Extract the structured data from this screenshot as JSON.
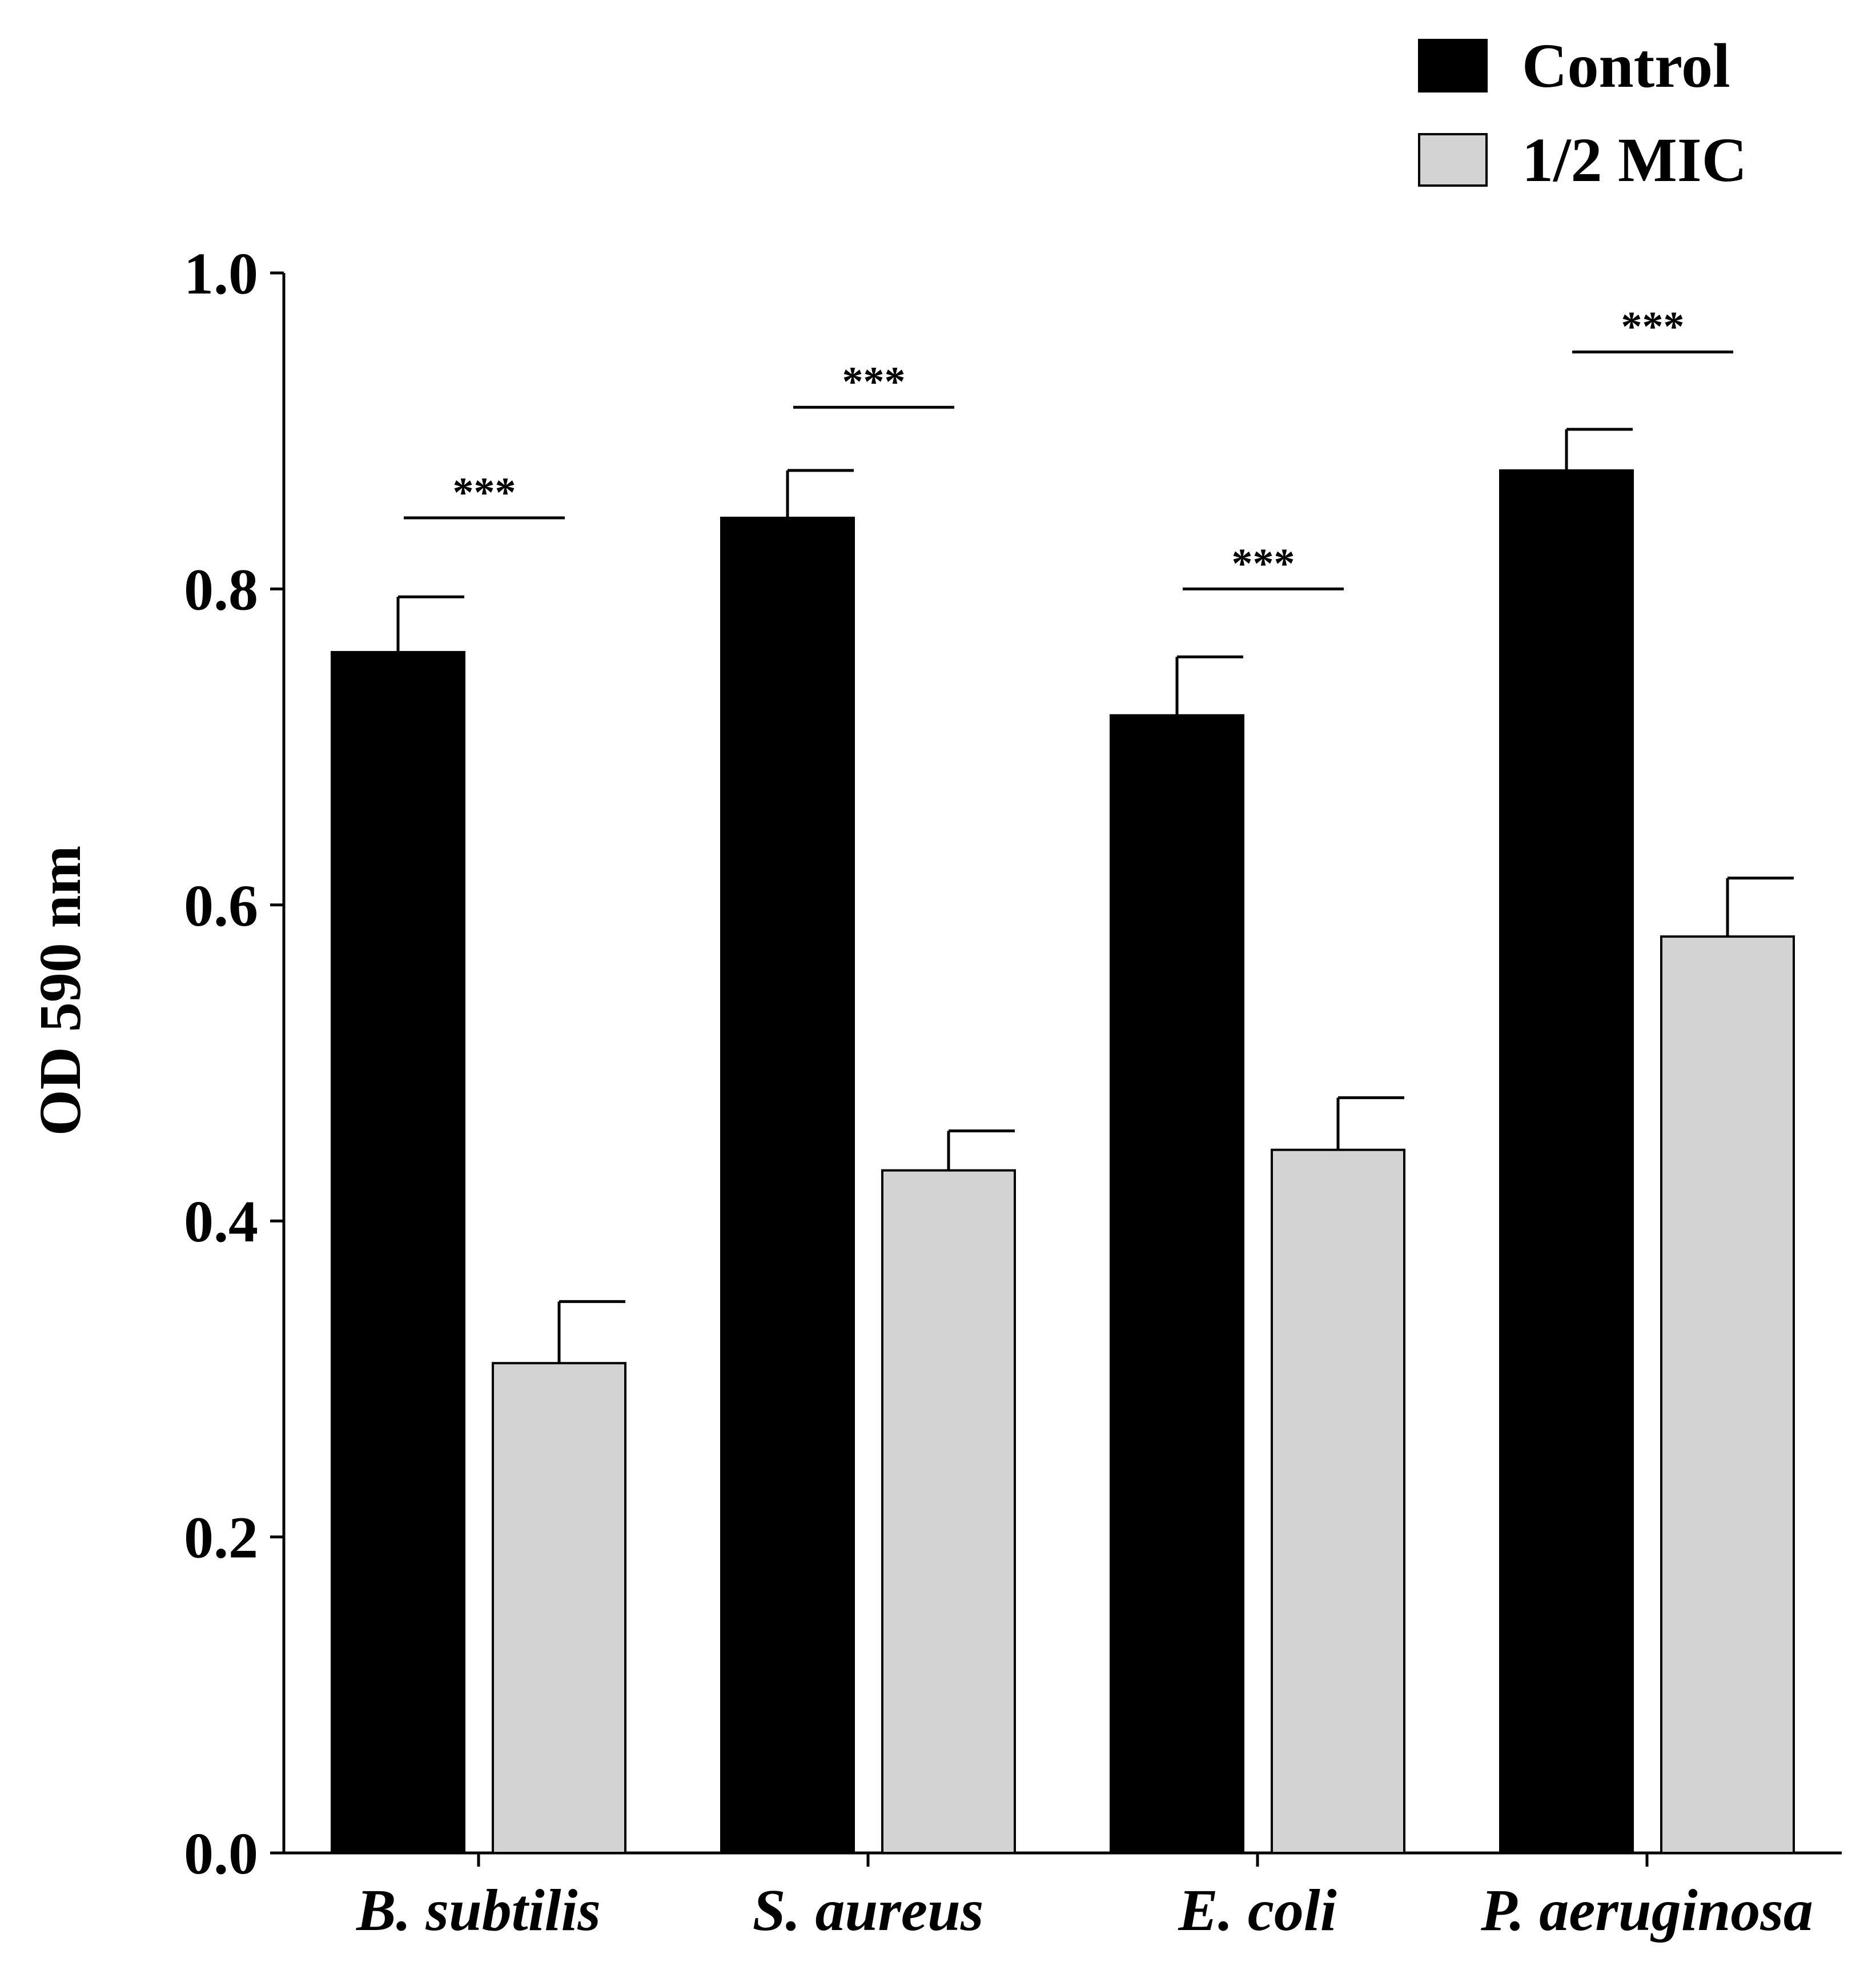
{
  "chart_data": {
    "type": "bar",
    "title": "",
    "xlabel": "",
    "ylabel": "OD 590 nm",
    "ylim": [
      0,
      1.0
    ],
    "yticks": [
      "0.0",
      "0.2",
      "0.4",
      "0.6",
      "0.8",
      "1.0"
    ],
    "categories": [
      "B. subtilis",
      "S. aureus",
      "E. coli",
      "P. aeruginosa"
    ],
    "series": [
      {
        "name": "Control",
        "color": "#000000",
        "values": [
          0.76,
          0.845,
          0.72,
          0.875
        ],
        "errors": [
          0.035,
          0.03,
          0.037,
          0.026
        ]
      },
      {
        "name": "1/2 MIC",
        "color": "#d3d3d3",
        "values": [
          0.31,
          0.432,
          0.445,
          0.58
        ],
        "errors": [
          0.039,
          0.025,
          0.033,
          0.037
        ]
      }
    ],
    "significance": [
      {
        "category": "B. subtilis",
        "label": "***",
        "level": 0.845
      },
      {
        "category": "S. aureus",
        "label": "***",
        "level": 0.915
      },
      {
        "category": "E. coli",
        "label": "***",
        "level": 0.8
      },
      {
        "category": "P. aeruginosa",
        "label": "***",
        "level": 0.95
      }
    ],
    "legend_position": "top-right"
  }
}
